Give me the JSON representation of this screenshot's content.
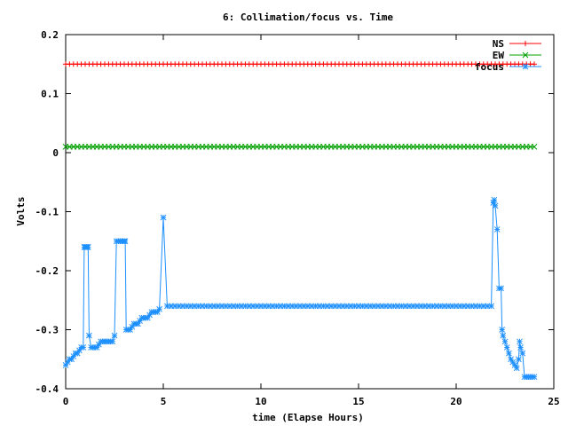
{
  "chart_data": {
    "type": "line",
    "title": "6: Collimation/focus vs. Time",
    "xlabel": "time (Elapse Hours)",
    "ylabel": "Volts",
    "xlim": [
      0,
      25
    ],
    "ylim": [
      -0.4,
      0.2
    ],
    "xticks": [
      0,
      5,
      10,
      15,
      20,
      25
    ],
    "yticks": [
      -0.4,
      -0.3,
      -0.2,
      -0.1,
      0,
      0.1,
      0.2
    ],
    "xtick_labels": [
      "0",
      "5",
      "10",
      "15",
      "20",
      "25"
    ],
    "ytick_labels": [
      "-0.4",
      "-0.3",
      "-0.2",
      "-0.1",
      "0",
      "0.1",
      "0.2"
    ],
    "grid": false,
    "legend_position": "top-right",
    "series": [
      {
        "name": "NS",
        "color": "#ff0000",
        "marker": "plus",
        "points": [
          [
            0.0,
            0.15
          ],
          [
            24.0,
            0.15
          ]
        ],
        "sample_step": 0.2
      },
      {
        "name": "EW",
        "color": "#00a000",
        "marker": "cross",
        "points": [
          [
            0.0,
            0.01
          ],
          [
            24.0,
            0.01
          ]
        ],
        "sample_step": 0.2
      },
      {
        "name": "focus",
        "color": "#1e90ff",
        "marker": "star",
        "points": [
          [
            0.0,
            -0.36
          ],
          [
            0.1,
            -0.355
          ],
          [
            0.2,
            -0.35
          ],
          [
            0.3,
            -0.35
          ],
          [
            0.4,
            -0.345
          ],
          [
            0.5,
            -0.34
          ],
          [
            0.6,
            -0.34
          ],
          [
            0.7,
            -0.335
          ],
          [
            0.8,
            -0.33
          ],
          [
            0.9,
            -0.33
          ],
          [
            0.95,
            -0.16
          ],
          [
            1.0,
            -0.16
          ],
          [
            1.05,
            -0.16
          ],
          [
            1.1,
            -0.16
          ],
          [
            1.15,
            -0.16
          ],
          [
            1.2,
            -0.31
          ],
          [
            1.3,
            -0.33
          ],
          [
            1.4,
            -0.33
          ],
          [
            1.5,
            -0.33
          ],
          [
            1.6,
            -0.33
          ],
          [
            1.7,
            -0.325
          ],
          [
            1.8,
            -0.32
          ],
          [
            1.9,
            -0.32
          ],
          [
            2.0,
            -0.32
          ],
          [
            2.1,
            -0.32
          ],
          [
            2.2,
            -0.32
          ],
          [
            2.3,
            -0.32
          ],
          [
            2.4,
            -0.32
          ],
          [
            2.5,
            -0.31
          ],
          [
            2.6,
            -0.15
          ],
          [
            2.7,
            -0.15
          ],
          [
            2.8,
            -0.15
          ],
          [
            2.9,
            -0.15
          ],
          [
            3.0,
            -0.15
          ],
          [
            3.05,
            -0.15
          ],
          [
            3.1,
            -0.3
          ],
          [
            3.2,
            -0.3
          ],
          [
            3.3,
            -0.3
          ],
          [
            3.4,
            -0.295
          ],
          [
            3.5,
            -0.29
          ],
          [
            3.6,
            -0.29
          ],
          [
            3.7,
            -0.29
          ],
          [
            3.8,
            -0.285
          ],
          [
            3.9,
            -0.28
          ],
          [
            4.0,
            -0.28
          ],
          [
            4.1,
            -0.28
          ],
          [
            4.2,
            -0.28
          ],
          [
            4.3,
            -0.275
          ],
          [
            4.4,
            -0.27
          ],
          [
            4.5,
            -0.27
          ],
          [
            4.6,
            -0.27
          ],
          [
            4.7,
            -0.27
          ],
          [
            4.8,
            -0.265
          ],
          [
            5.0,
            -0.11
          ],
          [
            5.2,
            -0.26
          ],
          [
            5.4,
            -0.26
          ],
          [
            5.6,
            -0.26
          ],
          [
            5.8,
            -0.26
          ],
          [
            6.0,
            -0.26
          ],
          [
            6.2,
            -0.26
          ],
          [
            6.4,
            -0.26
          ],
          [
            6.6,
            -0.26
          ],
          [
            6.8,
            -0.26
          ],
          [
            7.0,
            -0.26
          ],
          [
            7.2,
            -0.26
          ],
          [
            7.4,
            -0.26
          ],
          [
            7.6,
            -0.26
          ],
          [
            7.8,
            -0.26
          ],
          [
            8.0,
            -0.26
          ],
          [
            8.2,
            -0.26
          ],
          [
            8.4,
            -0.26
          ],
          [
            8.6,
            -0.26
          ],
          [
            8.8,
            -0.26
          ],
          [
            9.0,
            -0.26
          ],
          [
            9.2,
            -0.26
          ],
          [
            9.4,
            -0.26
          ],
          [
            9.6,
            -0.26
          ],
          [
            9.8,
            -0.26
          ],
          [
            10.0,
            -0.26
          ],
          [
            10.2,
            -0.26
          ],
          [
            10.4,
            -0.26
          ],
          [
            10.6,
            -0.26
          ],
          [
            10.8,
            -0.26
          ],
          [
            11.0,
            -0.26
          ],
          [
            11.2,
            -0.26
          ],
          [
            11.4,
            -0.26
          ],
          [
            11.6,
            -0.26
          ],
          [
            11.8,
            -0.26
          ],
          [
            12.0,
            -0.26
          ],
          [
            12.2,
            -0.26
          ],
          [
            12.4,
            -0.26
          ],
          [
            12.6,
            -0.26
          ],
          [
            12.8,
            -0.26
          ],
          [
            13.0,
            -0.26
          ],
          [
            13.2,
            -0.26
          ],
          [
            13.4,
            -0.26
          ],
          [
            13.6,
            -0.26
          ],
          [
            13.8,
            -0.26
          ],
          [
            14.0,
            -0.26
          ],
          [
            14.2,
            -0.26
          ],
          [
            14.4,
            -0.26
          ],
          [
            14.6,
            -0.26
          ],
          [
            14.8,
            -0.26
          ],
          [
            15.0,
            -0.26
          ],
          [
            15.2,
            -0.26
          ],
          [
            15.4,
            -0.26
          ],
          [
            15.6,
            -0.26
          ],
          [
            15.8,
            -0.26
          ],
          [
            16.0,
            -0.26
          ],
          [
            16.2,
            -0.26
          ],
          [
            16.4,
            -0.26
          ],
          [
            16.6,
            -0.26
          ],
          [
            16.8,
            -0.26
          ],
          [
            17.0,
            -0.26
          ],
          [
            17.2,
            -0.26
          ],
          [
            17.4,
            -0.26
          ],
          [
            17.6,
            -0.26
          ],
          [
            17.8,
            -0.26
          ],
          [
            18.0,
            -0.26
          ],
          [
            18.2,
            -0.26
          ],
          [
            18.4,
            -0.26
          ],
          [
            18.6,
            -0.26
          ],
          [
            18.8,
            -0.26
          ],
          [
            19.0,
            -0.26
          ],
          [
            19.2,
            -0.26
          ],
          [
            19.4,
            -0.26
          ],
          [
            19.6,
            -0.26
          ],
          [
            19.8,
            -0.26
          ],
          [
            20.0,
            -0.26
          ],
          [
            20.2,
            -0.26
          ],
          [
            20.4,
            -0.26
          ],
          [
            20.6,
            -0.26
          ],
          [
            20.8,
            -0.26
          ],
          [
            21.0,
            -0.26
          ],
          [
            21.2,
            -0.26
          ],
          [
            21.4,
            -0.26
          ],
          [
            21.6,
            -0.26
          ],
          [
            21.8,
            -0.26
          ],
          [
            21.9,
            -0.085
          ],
          [
            21.95,
            -0.08
          ],
          [
            22.0,
            -0.09
          ],
          [
            22.1,
            -0.13
          ],
          [
            22.2,
            -0.23
          ],
          [
            22.3,
            -0.23
          ],
          [
            22.35,
            -0.3
          ],
          [
            22.4,
            -0.31
          ],
          [
            22.5,
            -0.32
          ],
          [
            22.6,
            -0.33
          ],
          [
            22.7,
            -0.34
          ],
          [
            22.8,
            -0.35
          ],
          [
            22.9,
            -0.355
          ],
          [
            23.0,
            -0.36
          ],
          [
            23.1,
            -0.365
          ],
          [
            23.2,
            -0.35
          ],
          [
            23.25,
            -0.32
          ],
          [
            23.3,
            -0.33
          ],
          [
            23.4,
            -0.34
          ],
          [
            23.5,
            -0.38
          ],
          [
            23.6,
            -0.38
          ],
          [
            23.7,
            -0.38
          ],
          [
            23.8,
            -0.38
          ],
          [
            23.9,
            -0.38
          ],
          [
            24.0,
            -0.38
          ]
        ]
      }
    ]
  }
}
